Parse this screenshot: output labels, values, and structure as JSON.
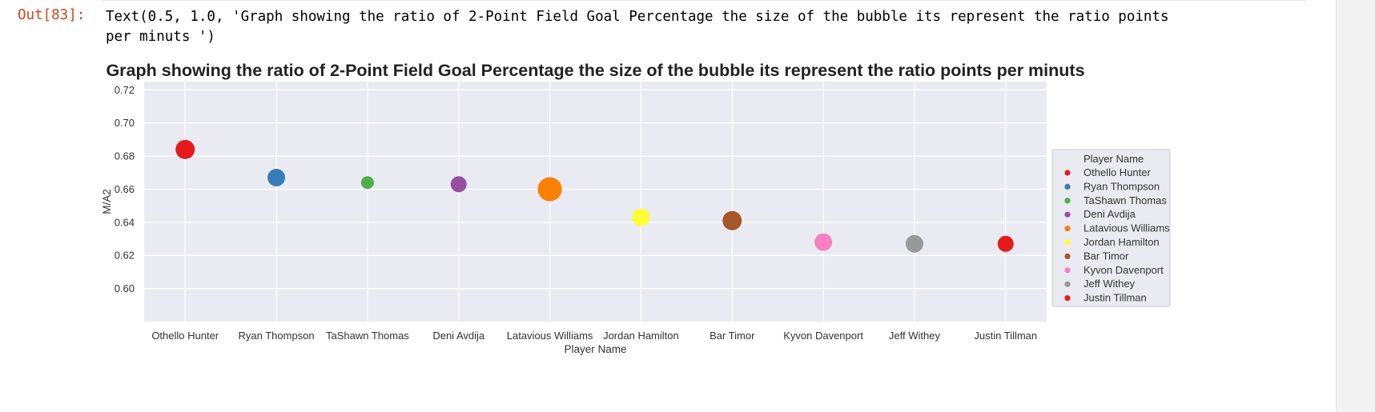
{
  "cell": {
    "prompt": "Out[83]:",
    "output_text": "Text(0.5, 1.0, 'Graph showing the ratio of 2-Point Field Goal Percentage the size of the bubble its represent the ratio points\nper minuts ')"
  },
  "chart_data": {
    "type": "scatter",
    "title": "Graph showing the ratio of 2-Point Field Goal Percentage the size of the bubble its represent the ratio points per minuts",
    "xlabel": "Player Name",
    "ylabel": "M/A2",
    "categories": [
      "Othello Hunter",
      "Ryan Thompson",
      "TaShawn Thomas",
      "Deni Avdija",
      "Latavious Williams",
      "Jordan Hamilton",
      "Bar Timor",
      "Kyvon Davenport",
      "Jeff Withey",
      "Justin Tillman"
    ],
    "values": [
      0.684,
      0.667,
      0.664,
      0.663,
      0.66,
      0.643,
      0.641,
      0.628,
      0.627,
      0.627
    ],
    "colors": [
      "#e41a1c",
      "#377eb8",
      "#4daf4a",
      "#984ea3",
      "#ff7f00",
      "#ffff33",
      "#a65628",
      "#f781bf",
      "#999999",
      "#e41a1c"
    ],
    "sizes": [
      12,
      11,
      8,
      10,
      15,
      11,
      12,
      11,
      11,
      10
    ],
    "ylim": [
      0.58,
      0.725
    ],
    "yticks": [
      "0.60",
      "0.62",
      "0.64",
      "0.66",
      "0.68",
      "0.70",
      "0.72"
    ],
    "grid": true,
    "legend": {
      "title": "Player Name",
      "placement": "outside-right",
      "entries": [
        "Othello Hunter",
        "Ryan Thompson",
        "TaShawn Thomas",
        "Deni Avdija",
        "Latavious Williams",
        "Jordan Hamilton",
        "Bar Timor",
        "Kyvon Davenport",
        "Jeff Withey",
        "Justin Tillman"
      ]
    }
  }
}
